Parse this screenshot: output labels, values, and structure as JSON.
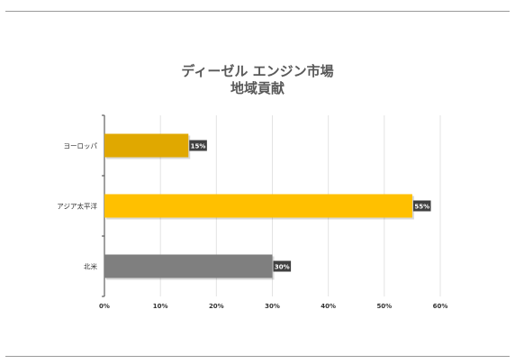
{
  "chart_data": {
    "type": "bar",
    "orientation": "horizontal",
    "title_lines": [
      "ディーゼル エンジン市場",
      "地域貢献"
    ],
    "categories": [
      "ヨーロッパ",
      "アジア太平洋",
      "北米"
    ],
    "values": [
      15,
      55,
      30
    ],
    "data_labels": [
      "15%",
      "55%",
      "30%"
    ],
    "colors": [
      "#E0A800",
      "#FFC000",
      "#7F7F7F"
    ],
    "xlim": [
      0,
      60
    ],
    "xticks": [
      "0%",
      "10%",
      "20%",
      "30%",
      "40%",
      "50%",
      "60%"
    ],
    "grid": "vertical",
    "legend": "none"
  }
}
